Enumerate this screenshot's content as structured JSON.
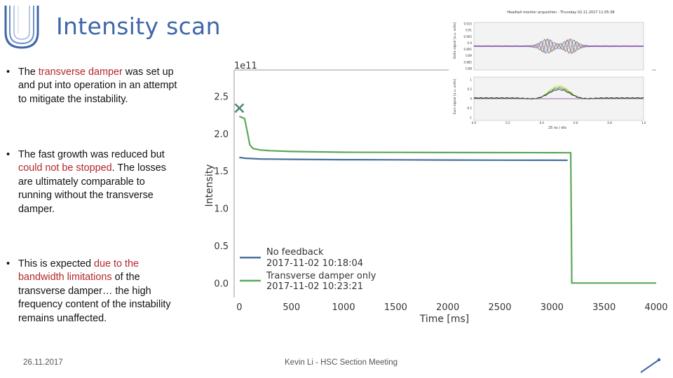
{
  "slide": {
    "title": "Intensity scan",
    "bullets": [
      {
        "pre": "The ",
        "hl": "transverse damper",
        "post": " was set up and put into operation in an attempt to mitigate the instability."
      },
      {
        "pre": "The fast growth was reduced but ",
        "hl": "could not be stopped",
        "post": ". The losses are ultimately comparable to running without the transverse damper."
      },
      {
        "pre": "This is expected ",
        "hl": "due to the bandwidth limitations",
        "post": " of the transverse damper… the high frequency content of the instability remains unaffected."
      }
    ],
    "footer_date": "26.11.2017",
    "footer_center": "Kevin Li - HSC Section Meeting",
    "colors": {
      "title": "#3f67a8",
      "highlight": "#b3262a",
      "series_blue": "#4a6f9a",
      "series_green": "#5aa85a"
    }
  },
  "chart_data": [
    {
      "type": "line",
      "title": "",
      "xlabel": "Time [ms]",
      "ylabel": "Intensity",
      "y_multiplier_label": "1e11",
      "xlim": [
        -50,
        4000
      ],
      "ylim": [
        -0.1,
        2.85
      ],
      "x_ticks": [
        0,
        500,
        1000,
        1500,
        2000,
        2500,
        3000,
        3500,
        4000
      ],
      "y_ticks": [
        0.0,
        0.5,
        1.0,
        1.5,
        2.0,
        2.5
      ],
      "x_tick_labels": [
        "0",
        "500",
        "1000",
        "1500",
        "2000",
        "2500",
        "3000",
        "3500",
        "4000"
      ],
      "y_tick_labels": [
        "0.0",
        "0.5",
        "1.0",
        "1.5",
        "2.0",
        "2.5"
      ],
      "legend_position": "bottom-left",
      "marker": {
        "x": 0,
        "y": 2.34,
        "symbol": "x"
      },
      "series": [
        {
          "name": "No feedback",
          "date": "2017-11-02 10:18:04",
          "color": "#4a6f9a",
          "x": [
            0,
            50,
            200,
            500,
            1000,
            1500,
            2000,
            2500,
            3000,
            3150
          ],
          "y": [
            1.68,
            1.67,
            1.66,
            1.655,
            1.65,
            1.648,
            1.646,
            1.644,
            1.643,
            1.642
          ]
        },
        {
          "name": "Transverse damper only",
          "date": "2017-11-02 10:23:21",
          "color": "#5aa85a",
          "x": [
            0,
            50,
            80,
            100,
            130,
            200,
            300,
            500,
            1000,
            1500,
            2000,
            2500,
            3000,
            3180,
            3185,
            3190,
            4000
          ],
          "y": [
            2.23,
            2.2,
            2.0,
            1.85,
            1.8,
            1.78,
            1.77,
            1.76,
            1.75,
            1.748,
            1.746,
            1.745,
            1.744,
            1.743,
            0.9,
            0.0,
            0.0
          ]
        }
      ]
    },
    {
      "type": "line",
      "title": "Headtail monitor acquisition - Thursday 02.11.2017 11:05:38",
      "panels": [
        {
          "ylabel": "Delta signal [a.u. units]",
          "y_ticks": [
            0.88,
            0.885,
            0.89,
            0.895,
            0.9,
            0.905,
            0.91,
            0.915
          ]
        },
        {
          "ylabel": "Sum signal [a.u. units]",
          "y_ticks": [
            -1.0,
            -0.5,
            0.0,
            0.5,
            1.0
          ]
        }
      ],
      "xlabel": "25 ns / div",
      "x_ticks": [
        0.0,
        0.2,
        0.4,
        0.6,
        0.8,
        1.0
      ]
    }
  ]
}
